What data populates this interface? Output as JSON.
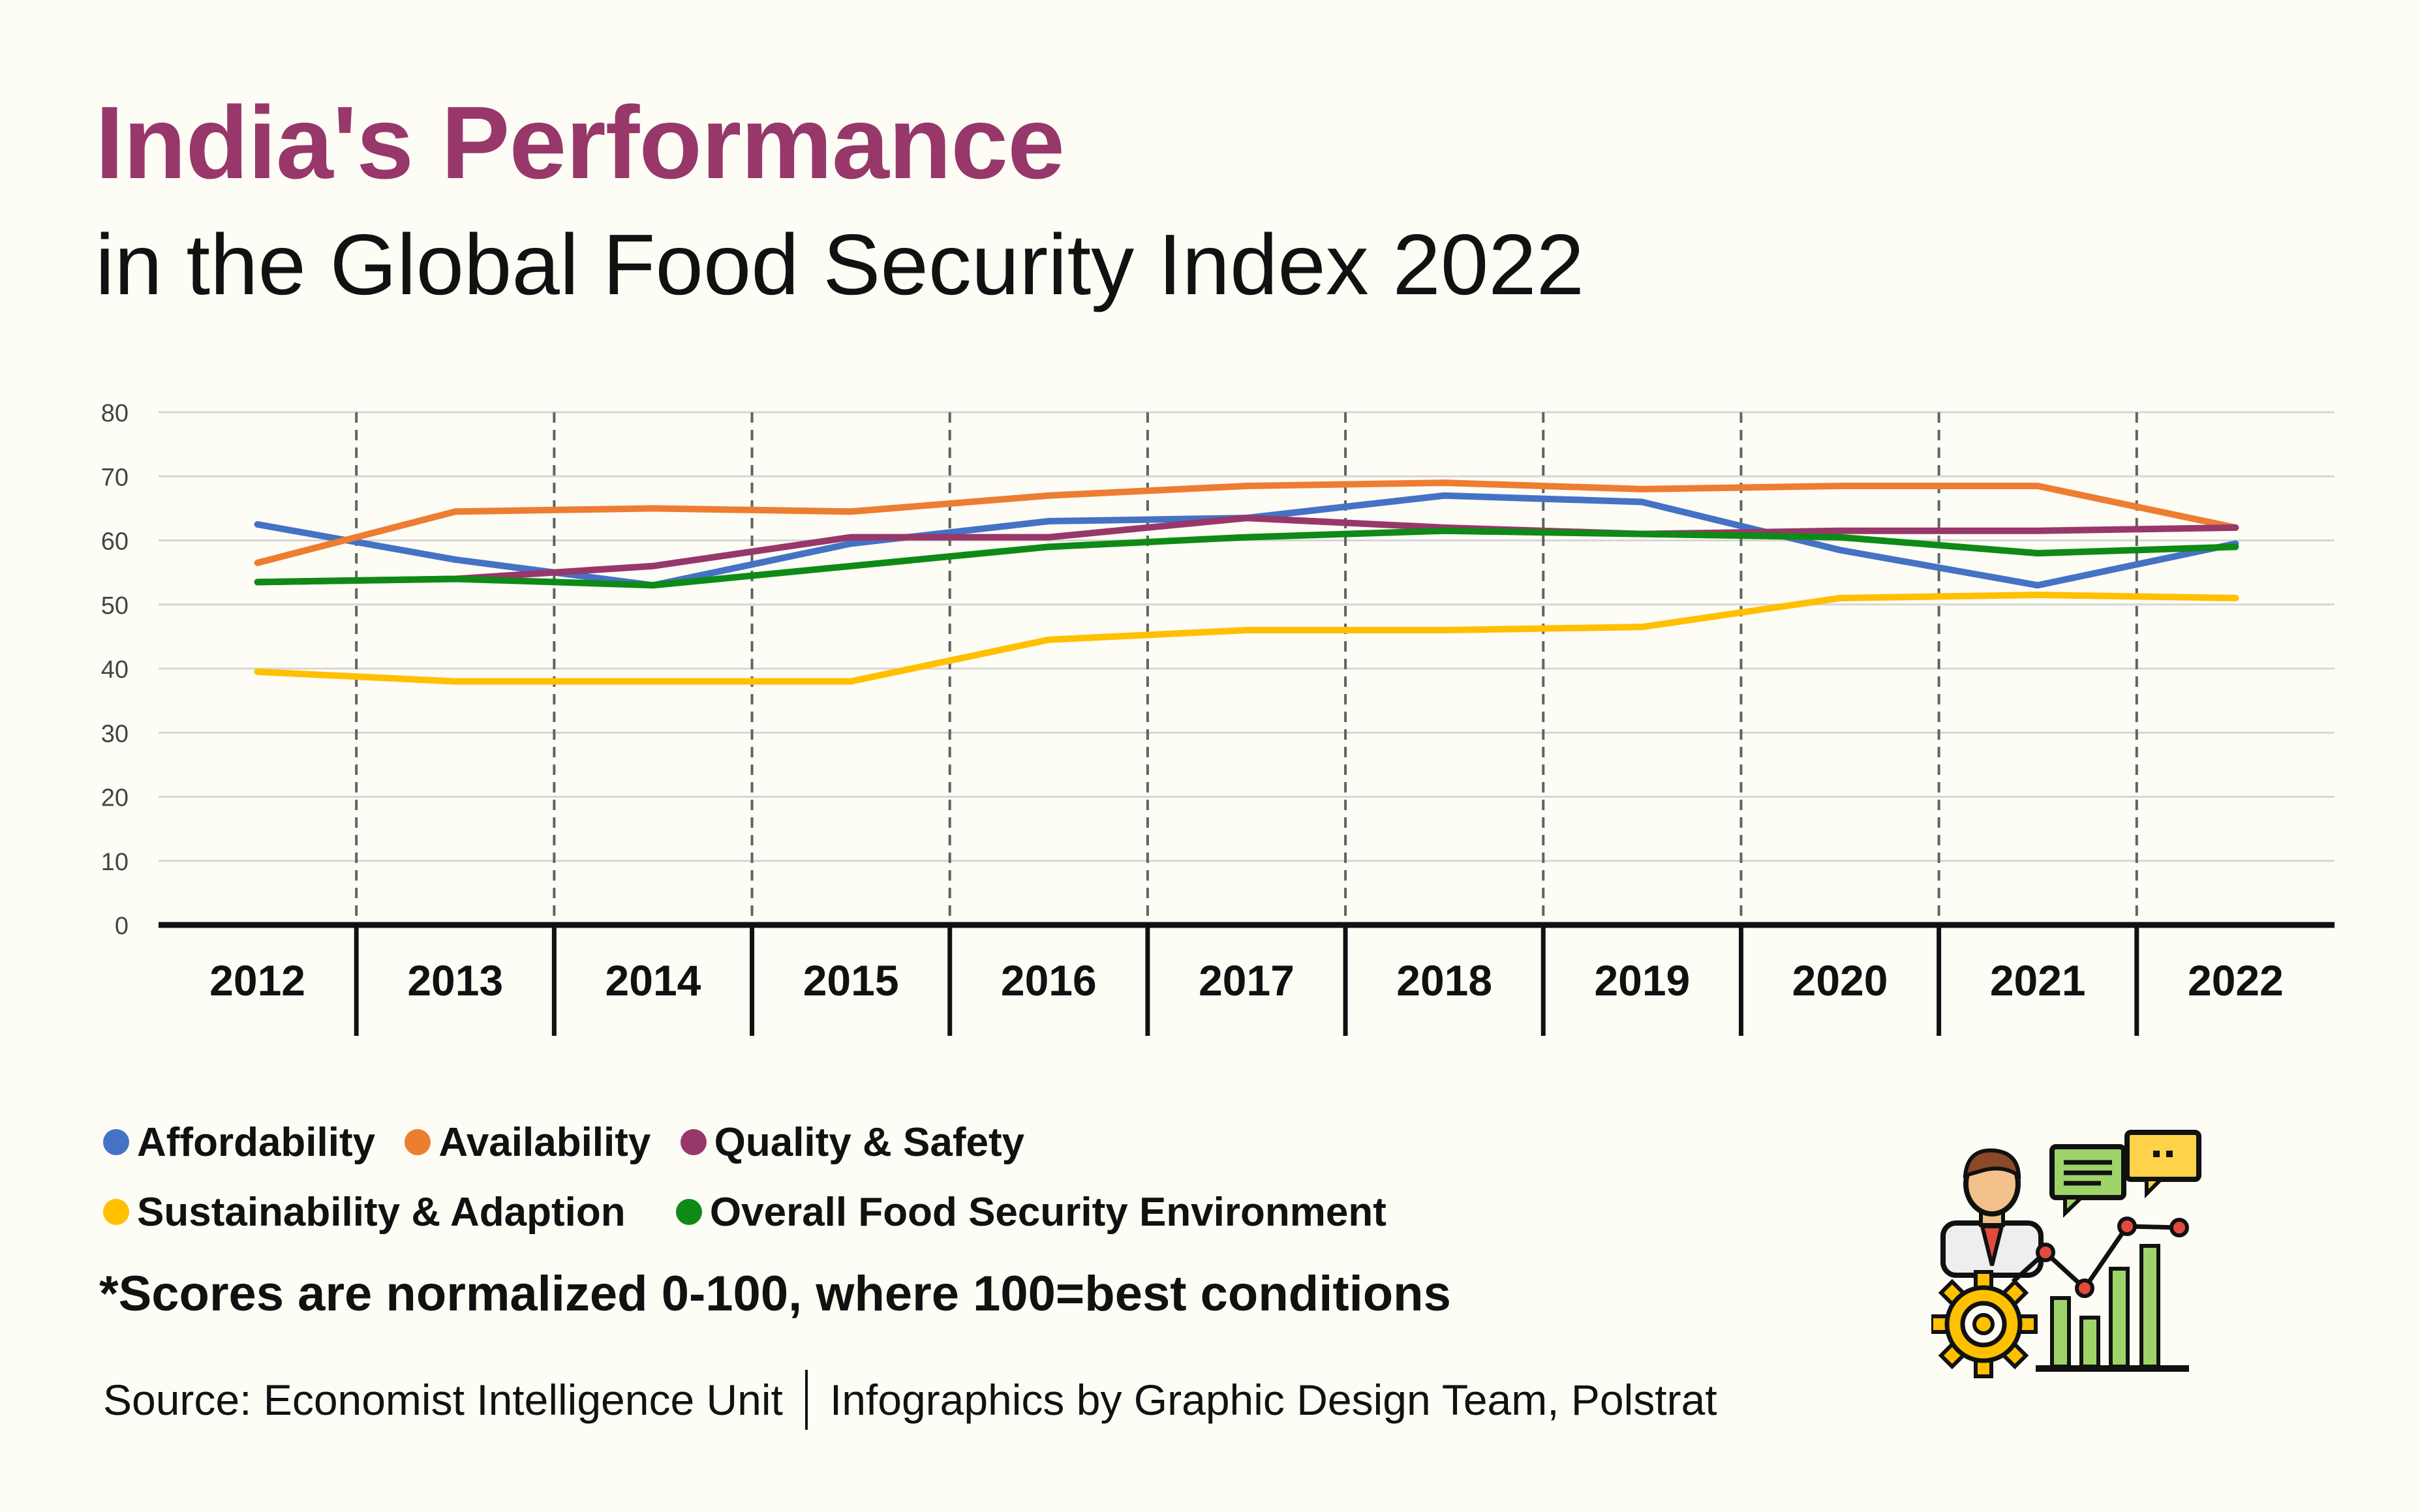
{
  "title": "India's Performance",
  "subtitle": "in the Global Food Security Index 2022",
  "chart_data": {
    "type": "line",
    "title": "India's Performance in the Global Food Security Index 2022",
    "x": [
      2012,
      2013,
      2014,
      2015,
      2016,
      2017,
      2018,
      2019,
      2020,
      2021,
      2022
    ],
    "y_ticks": [
      0,
      10,
      20,
      30,
      40,
      50,
      60,
      70,
      80
    ],
    "ylim": [
      0,
      80
    ],
    "grid": true,
    "series": [
      {
        "name": "Affordability",
        "color": "#4472c4",
        "values": [
          62.5,
          57.0,
          53.0,
          59.5,
          63.0,
          63.5,
          67.0,
          66.0,
          58.5,
          53.0,
          59.5
        ]
      },
      {
        "name": "Availability",
        "color": "#ed7d31",
        "values": [
          56.5,
          64.5,
          65.0,
          64.5,
          67.0,
          68.5,
          69.0,
          68.0,
          68.5,
          68.5,
          62.0
        ]
      },
      {
        "name": "Quality & Safety",
        "color": "#98376a",
        "values": [
          53.5,
          54.0,
          56.0,
          60.5,
          60.5,
          63.5,
          62.0,
          61.0,
          61.5,
          61.5,
          62.0
        ]
      },
      {
        "name": "Sustainability & Adaption",
        "color": "#ffc000",
        "values": [
          39.5,
          38.0,
          38.0,
          38.0,
          44.5,
          46.0,
          46.0,
          46.5,
          51.0,
          51.5,
          51.0
        ]
      },
      {
        "name": "Overall Food Security Environment",
        "color": "#0e8a16",
        "values": [
          53.5,
          54.0,
          53.0,
          56.0,
          59.0,
          60.5,
          61.5,
          61.0,
          60.5,
          58.0,
          59.0
        ]
      }
    ]
  },
  "legend": {
    "row1": [
      "Affordability",
      "Availability",
      "Quality & Safety"
    ],
    "row2": [
      "Sustainability & Adaption",
      "Overall Food Security Environment"
    ]
  },
  "note": "*Scores are normalized 0-100, where 100=best conditions",
  "source": {
    "left": "Source: Economist Intelligence Unit",
    "right": "Infographics by Graphic Design Team, Polstrat"
  }
}
